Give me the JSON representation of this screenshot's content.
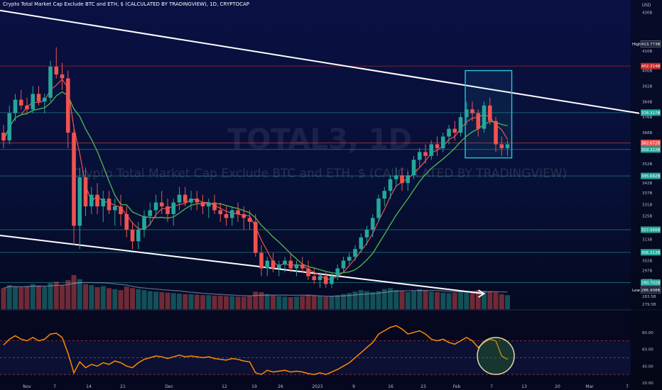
{
  "header": {
    "symbol_line": "Crypto Total Market Cap Exclude BTC and ETH, $ (CALCULATED BY TRADINGVIEW), 1D, CRYPTOCAP"
  },
  "watermark": {
    "symbol": "TOTAL3, 1D",
    "description": "Crypto Total Market Cap Exclude BTC and ETH, $ (CALCULATED BY TRADINGVIEW)"
  },
  "chart_data": [
    {
      "type": "candlestick",
      "unit": "USD",
      "y_unit_label": "USD",
      "ylim": [
        277,
        432
      ],
      "x_ticks": [
        "Nov",
        "7",
        "14",
        "21",
        "Dec",
        "12",
        "19",
        "26",
        "2023",
        "9",
        "16",
        "23",
        "Feb",
        "7",
        "13",
        "20",
        "Mar",
        "7"
      ],
      "y_ticks": [
        "430B",
        "410B",
        "400B",
        "392B",
        "384B",
        "376B",
        "368B",
        "360B",
        "352B",
        "342B",
        "337B",
        "331B",
        "325B",
        "318B",
        "313B",
        "306B",
        "302B",
        "297B",
        "292B",
        "287B",
        "283.5B",
        "279.5B"
      ],
      "price_labels": [
        {
          "name": "High",
          "text": "413.773B",
          "value": 413.773,
          "color": "#ffffff"
        },
        {
          "name": "",
          "text": "402.314B",
          "value": 402.314,
          "color": "#c62828"
        },
        {
          "name": "",
          "text": "378.317B",
          "value": 378.317,
          "color": "#26a69a"
        },
        {
          "name": "",
          "text": "362.672B",
          "value": 362.672,
          "color": "#ef5350"
        },
        {
          "name": "",
          "text": "359.322B",
          "value": 359.322,
          "color": "#26a69a"
        },
        {
          "name": "",
          "text": "345.682B",
          "value": 345.682,
          "color": "#26a69a"
        },
        {
          "name": "",
          "text": "317.956B",
          "value": 317.956,
          "color": "#26a69a"
        },
        {
          "name": "",
          "text": "306.313B",
          "value": 306.313,
          "color": "#26a69a"
        },
        {
          "name": "",
          "text": "290.702B",
          "value": 290.702,
          "color": "#26a69a"
        },
        {
          "name": "Low",
          "text": "286.908B",
          "value": 286.908,
          "color": "#ffffff"
        }
      ],
      "candles": [
        [
          368,
          372,
          360,
          364
        ],
        [
          364,
          382,
          362,
          378
        ],
        [
          378,
          388,
          374,
          385
        ],
        [
          385,
          390,
          380,
          382
        ],
        [
          382,
          386,
          378,
          380
        ],
        [
          380,
          392,
          378,
          388
        ],
        [
          388,
          392,
          382,
          384
        ],
        [
          384,
          388,
          378,
          386
        ],
        [
          386,
          405,
          384,
          402
        ],
        [
          402,
          412,
          396,
          398
        ],
        [
          398,
          404,
          390,
          396
        ],
        [
          396,
          400,
          360,
          368
        ],
        [
          368,
          372,
          310,
          320
        ],
        [
          320,
          350,
          308,
          345
        ],
        [
          345,
          350,
          325,
          330
        ],
        [
          330,
          340,
          326,
          336
        ],
        [
          336,
          342,
          326,
          330
        ],
        [
          330,
          338,
          322,
          334
        ],
        [
          334,
          338,
          326,
          328
        ],
        [
          328,
          334,
          320,
          330
        ],
        [
          330,
          336,
          320,
          326
        ],
        [
          326,
          330,
          314,
          318
        ],
        [
          318,
          322,
          308,
          312
        ],
        [
          312,
          322,
          308,
          318
        ],
        [
          318,
          328,
          314,
          325
        ],
        [
          325,
          332,
          320,
          328
        ],
        [
          328,
          336,
          324,
          332
        ],
        [
          332,
          338,
          326,
          330
        ],
        [
          330,
          334,
          322,
          326
        ],
        [
          326,
          334,
          320,
          332
        ],
        [
          332,
          340,
          328,
          336
        ],
        [
          336,
          340,
          330,
          332
        ],
        [
          332,
          338,
          328,
          334
        ],
        [
          334,
          338,
          328,
          332
        ],
        [
          332,
          336,
          326,
          330
        ],
        [
          330,
          334,
          324,
          332
        ],
        [
          332,
          336,
          326,
          328
        ],
        [
          328,
          332,
          322,
          326
        ],
        [
          326,
          330,
          320,
          324
        ],
        [
          324,
          330,
          320,
          328
        ],
        [
          328,
          332,
          322,
          326
        ],
        [
          326,
          330,
          318,
          324
        ],
        [
          324,
          328,
          318,
          322
        ],
        [
          322,
          326,
          304,
          306
        ],
        [
          306,
          310,
          294,
          298
        ],
        [
          298,
          304,
          294,
          302
        ],
        [
          302,
          306,
          296,
          298
        ],
        [
          298,
          302,
          294,
          300
        ],
        [
          300,
          304,
          296,
          302
        ],
        [
          302,
          306,
          296,
          298
        ],
        [
          298,
          302,
          294,
          300
        ],
        [
          300,
          304,
          296,
          298
        ],
        [
          298,
          302,
          292,
          294
        ],
        [
          294,
          298,
          290,
          292
        ],
        [
          292,
          296,
          288,
          294
        ],
        [
          294,
          296,
          288,
          290
        ],
        [
          290,
          296,
          288,
          294
        ],
        [
          294,
          300,
          292,
          298
        ],
        [
          298,
          304,
          296,
          302
        ],
        [
          302,
          306,
          300,
          304
        ],
        [
          304,
          310,
          302,
          308
        ],
        [
          308,
          316,
          306,
          314
        ],
        [
          314,
          320,
          310,
          318
        ],
        [
          318,
          326,
          314,
          324
        ],
        [
          324,
          336,
          322,
          334
        ],
        [
          334,
          340,
          330,
          338
        ],
        [
          338,
          346,
          334,
          344
        ],
        [
          344,
          350,
          340,
          346
        ],
        [
          346,
          350,
          338,
          342
        ],
        [
          342,
          348,
          338,
          346
        ],
        [
          346,
          356,
          344,
          354
        ],
        [
          354,
          360,
          350,
          358
        ],
        [
          358,
          362,
          352,
          356
        ],
        [
          356,
          364,
          354,
          362
        ],
        [
          362,
          366,
          356,
          360
        ],
        [
          360,
          368,
          358,
          366
        ],
        [
          366,
          372,
          362,
          370
        ],
        [
          370,
          374,
          364,
          368
        ],
        [
          368,
          378,
          366,
          376
        ],
        [
          376,
          384,
          372,
          380
        ],
        [
          380,
          384,
          374,
          378
        ],
        [
          378,
          380,
          366,
          370
        ],
        [
          370,
          384,
          368,
          382
        ],
        [
          382,
          386,
          372,
          374
        ],
        [
          374,
          376,
          358,
          362
        ],
        [
          362,
          366,
          356,
          360
        ],
        [
          360,
          364,
          356,
          362
        ]
      ]
    },
    {
      "type": "bar",
      "name": "Volume",
      "values": [
        42,
        48,
        45,
        44,
        46,
        50,
        47,
        45,
        52,
        55,
        48,
        58,
        68,
        60,
        50,
        48,
        44,
        46,
        42,
        40,
        38,
        45,
        42,
        40,
        38,
        36,
        35,
        34,
        33,
        32,
        31,
        30,
        30,
        29,
        28,
        28,
        27,
        27,
        26,
        26,
        25,
        25,
        26,
        35,
        34,
        30,
        28,
        26,
        25,
        24,
        25,
        26,
        28,
        27,
        26,
        25,
        26,
        28,
        30,
        32,
        35,
        38,
        36,
        34,
        36,
        40,
        42,
        38,
        36,
        34,
        36,
        40,
        38,
        35,
        34,
        33,
        32,
        33,
        34,
        35,
        36,
        38,
        37,
        36,
        34,
        30,
        28
      ]
    },
    {
      "type": "line",
      "name": "RSI",
      "ylim": [
        20,
        100
      ],
      "y_ticks": [
        "80.00",
        "60.00",
        "40.00",
        "20.00"
      ],
      "values": [
        65,
        72,
        76,
        72,
        70,
        74,
        70,
        72,
        78,
        79,
        74,
        55,
        32,
        45,
        38,
        42,
        40,
        44,
        42,
        46,
        44,
        40,
        38,
        44,
        48,
        50,
        52,
        51,
        49,
        51,
        53,
        51,
        52,
        51,
        50,
        51,
        49,
        48,
        47,
        49,
        48,
        46,
        45,
        32,
        30,
        35,
        33,
        34,
        35,
        33,
        34,
        33,
        31,
        30,
        32,
        30,
        33,
        36,
        40,
        44,
        50,
        56,
        62,
        68,
        78,
        82,
        86,
        88,
        84,
        78,
        80,
        82,
        78,
        72,
        70,
        72,
        68,
        66,
        70,
        74,
        70,
        62,
        68,
        72,
        70,
        52,
        48
      ]
    }
  ],
  "colors": {
    "up": "#26a69a",
    "down": "#ef5350",
    "ma_fast": "#ef5350",
    "ma_slow": "#4caf50",
    "rsi": "#ff8a00",
    "trendline": "#ffffff",
    "highlight_box": "#26c6da"
  }
}
